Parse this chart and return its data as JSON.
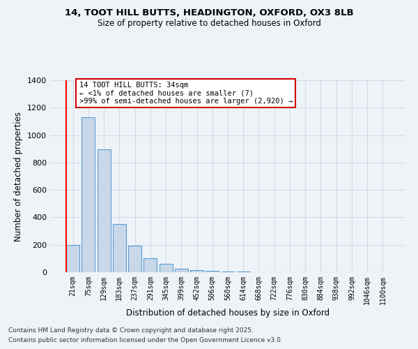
{
  "title1": "14, TOOT HILL BUTTS, HEADINGTON, OXFORD, OX3 8LB",
  "title2": "Size of property relative to detached houses in Oxford",
  "xlabel": "Distribution of detached houses by size in Oxford",
  "ylabel": "Number of detached properties",
  "categories": [
    "21sqm",
    "75sqm",
    "129sqm",
    "183sqm",
    "237sqm",
    "291sqm",
    "345sqm",
    "399sqm",
    "452sqm",
    "506sqm",
    "560sqm",
    "614sqm",
    "668sqm",
    "722sqm",
    "776sqm",
    "830sqm",
    "884sqm",
    "938sqm",
    "992sqm",
    "1046sqm",
    "1100sqm"
  ],
  "values": [
    200,
    1130,
    895,
    350,
    195,
    100,
    60,
    25,
    15,
    8,
    5,
    3,
    2,
    2,
    1,
    1,
    1,
    0,
    0,
    0,
    0
  ],
  "bar_color": "#c8d8e8",
  "bar_edge_color": "#5b9bd5",
  "grid_color": "#d0dce8",
  "background_color": "#eef3f8",
  "annotation_text": "14 TOOT HILL BUTTS: 34sqm\n← <1% of detached houses are smaller (7)\n>99% of semi-detached houses are larger (2,920) →",
  "annotation_box_color": "#ffffff",
  "annotation_box_edge": "#cc0000",
  "footer1": "Contains HM Land Registry data © Crown copyright and database right 2025.",
  "footer2": "Contains public sector information licensed under the Open Government Licence v3.0.",
  "ylim": [
    0,
    1400
  ],
  "yticks": [
    0,
    200,
    400,
    600,
    800,
    1000,
    1200,
    1400
  ]
}
